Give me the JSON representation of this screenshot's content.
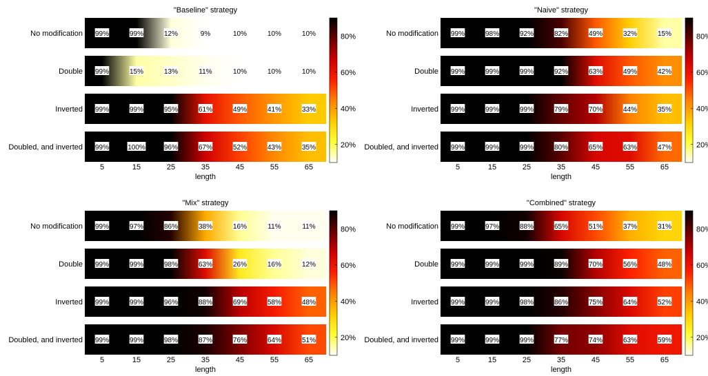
{
  "chart_data": [
    {
      "type": "heatmap",
      "title": "\"Baseline\" strategy",
      "xlabel": "length",
      "ylabel": "",
      "x_ticks": [
        5,
        15,
        25,
        35,
        45,
        55,
        65
      ],
      "x": [
        5,
        15,
        25,
        35,
        45,
        55,
        65
      ],
      "rows": [
        "No modification",
        "Double",
        "Inverted",
        "Doubled, and inverted"
      ],
      "values": [
        [
          99,
          99,
          12,
          9,
          10,
          10,
          10
        ],
        [
          99,
          15,
          13,
          11,
          10,
          10,
          10
        ],
        [
          99,
          99,
          95,
          61,
          49,
          41,
          33
        ],
        [
          99,
          100,
          96,
          67,
          52,
          43,
          35
        ]
      ],
      "value_labels": [
        [
          "99%",
          "99%",
          "12%",
          "9%",
          "10%",
          "10%",
          "10%"
        ],
        [
          "99%",
          "15%",
          "13%",
          "11%",
          "10%",
          "10%",
          "10%"
        ],
        [
          "99%",
          "99%",
          "95%",
          "61%",
          "49%",
          "41%",
          "33%"
        ],
        [
          "99%",
          "100%",
          "96%",
          "67%",
          "52%",
          "43%",
          "35%"
        ]
      ],
      "colorbar": {
        "min": 10,
        "max": 90,
        "ticks": [
          "20%",
          "40%",
          "60%",
          "80%"
        ],
        "tick_values": [
          20,
          40,
          60,
          80
        ]
      },
      "colormap": [
        "#ffffff",
        "#ffff33",
        "#ffcc00",
        "#ff8000",
        "#ff2000",
        "#cc0000",
        "#660000",
        "#000000"
      ]
    },
    {
      "type": "heatmap",
      "title": "\"Naive\" strategy",
      "xlabel": "length",
      "ylabel": "",
      "x_ticks": [
        5,
        15,
        25,
        35,
        45,
        55,
        65
      ],
      "x": [
        5,
        15,
        25,
        35,
        45,
        55,
        65
      ],
      "rows": [
        "No modification",
        "Double",
        "Inverted",
        "Doubled, and inverted"
      ],
      "values": [
        [
          99,
          98,
          92,
          82,
          49,
          32,
          15
        ],
        [
          99,
          99,
          99,
          92,
          63,
          49,
          42
        ],
        [
          99,
          99,
          99,
          79,
          70,
          44,
          35
        ],
        [
          99,
          99,
          99,
          80,
          65,
          63,
          47
        ]
      ],
      "value_labels": [
        [
          "99%",
          "98%",
          "92%",
          "82%",
          "49%",
          "32%",
          "15%"
        ],
        [
          "99%",
          "99%",
          "99%",
          "92%",
          "63%",
          "49%",
          "42%"
        ],
        [
          "99%",
          "99%",
          "99%",
          "79%",
          "70%",
          "44%",
          "35%"
        ],
        [
          "99%",
          "99%",
          "99%",
          "80%",
          "65%",
          "63%",
          "47%"
        ]
      ],
      "colorbar": {
        "min": 10,
        "max": 90,
        "ticks": [
          "20%",
          "40%",
          "60%",
          "80%"
        ],
        "tick_values": [
          20,
          40,
          60,
          80
        ]
      },
      "colormap": [
        "#ffffff",
        "#ffff33",
        "#ffcc00",
        "#ff8000",
        "#ff2000",
        "#cc0000",
        "#660000",
        "#000000"
      ]
    },
    {
      "type": "heatmap",
      "title": "\"Mix\" strategy",
      "xlabel": "length",
      "ylabel": "",
      "x_ticks": [
        5,
        15,
        25,
        35,
        45,
        55,
        65
      ],
      "x": [
        5,
        15,
        25,
        35,
        45,
        55,
        65
      ],
      "rows": [
        "No modification",
        "Double",
        "Inverted",
        "Doubled, and inverted"
      ],
      "values": [
        [
          99,
          97,
          86,
          38,
          16,
          11,
          11
        ],
        [
          99,
          99,
          98,
          63,
          26,
          16,
          12
        ],
        [
          99,
          99,
          96,
          88,
          69,
          58,
          48
        ],
        [
          99,
          99,
          98,
          87,
          76,
          64,
          51
        ]
      ],
      "value_labels": [
        [
          "99%",
          "97%",
          "86%",
          "38%",
          "16%",
          "11%",
          "11%"
        ],
        [
          "99%",
          "99%",
          "98%",
          "63%",
          "26%",
          "16%",
          "12%"
        ],
        [
          "99%",
          "99%",
          "96%",
          "88%",
          "69%",
          "58%",
          "48%"
        ],
        [
          "99%",
          "99%",
          "98%",
          "87%",
          "76%",
          "64%",
          "51%"
        ]
      ],
      "colorbar": {
        "min": 10,
        "max": 90,
        "ticks": [
          "20%",
          "40%",
          "60%",
          "80%"
        ],
        "tick_values": [
          20,
          40,
          60,
          80
        ]
      },
      "colormap": [
        "#ffffff",
        "#ffff33",
        "#ffcc00",
        "#ff8000",
        "#ff2000",
        "#cc0000",
        "#660000",
        "#000000"
      ]
    },
    {
      "type": "heatmap",
      "title": "\"Combined\" strategy",
      "xlabel": "length",
      "ylabel": "",
      "x_ticks": [
        5,
        15,
        25,
        35,
        45,
        55,
        65
      ],
      "x": [
        5,
        15,
        25,
        35,
        45,
        55,
        65
      ],
      "rows": [
        "No modification",
        "Double",
        "Inverted",
        "Doubled, and inverted"
      ],
      "values": [
        [
          99,
          97,
          88,
          65,
          51,
          37,
          31
        ],
        [
          99,
          99,
          99,
          89,
          70,
          56,
          48
        ],
        [
          99,
          99,
          98,
          86,
          75,
          64,
          52
        ],
        [
          99,
          99,
          99,
          77,
          74,
          63,
          59
        ]
      ],
      "value_labels": [
        [
          "99%",
          "97%",
          "88%",
          "65%",
          "51%",
          "37%",
          "31%"
        ],
        [
          "99%",
          "99%",
          "99%",
          "89%",
          "70%",
          "56%",
          "48%"
        ],
        [
          "99%",
          "99%",
          "98%",
          "86%",
          "75%",
          "64%",
          "52%"
        ],
        [
          "99%",
          "99%",
          "99%",
          "77%",
          "74%",
          "63%",
          "59%"
        ]
      ],
      "colorbar": {
        "min": 10,
        "max": 90,
        "ticks": [
          "20%",
          "40%",
          "60%",
          "80%"
        ],
        "tick_values": [
          20,
          40,
          60,
          80
        ]
      },
      "colormap": [
        "#ffffff",
        "#ffff33",
        "#ffcc00",
        "#ff8000",
        "#ff2000",
        "#cc0000",
        "#660000",
        "#000000"
      ]
    }
  ]
}
